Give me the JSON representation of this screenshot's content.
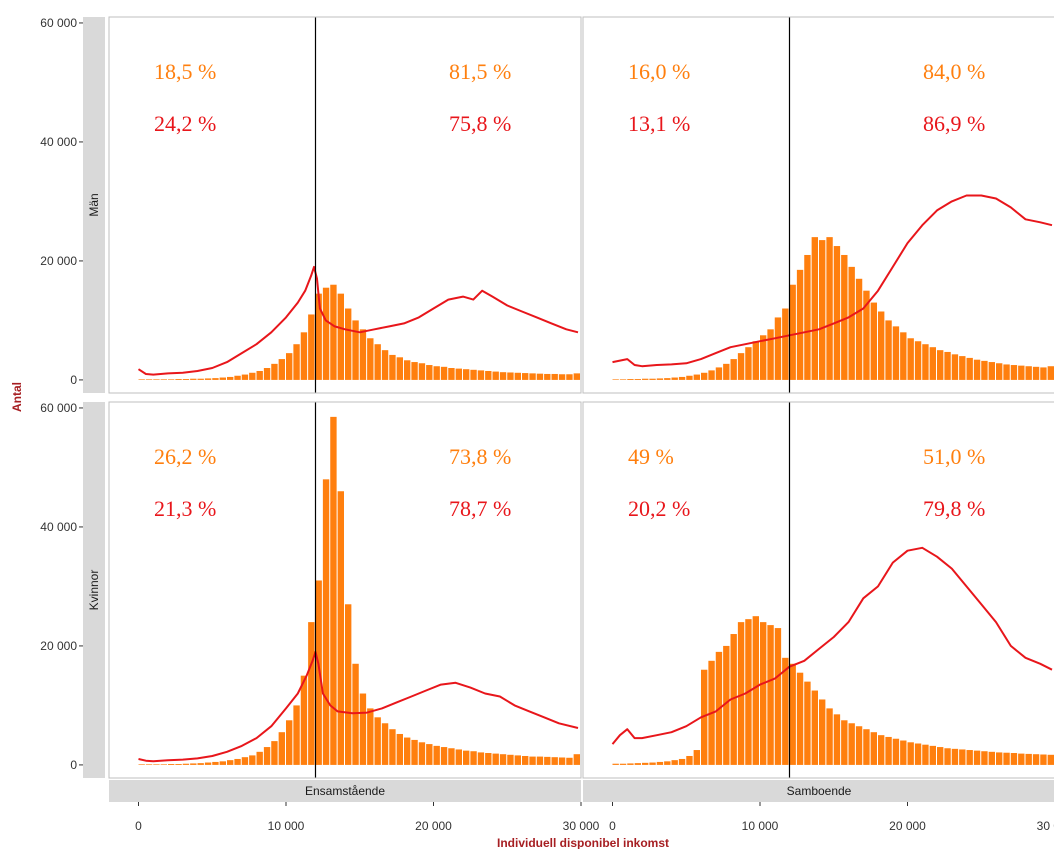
{
  "chart_data": {
    "type": "bar",
    "title": "",
    "xlabel": "Individuell disponibel inkomst",
    "ylabel": "Antal",
    "xlim": [
      -2000,
      30000
    ],
    "ylim": [
      -2200,
      61000
    ],
    "x_ticks": [
      0,
      10000,
      20000,
      30000
    ],
    "x_tick_labels": [
      "0",
      "10 000",
      "20 000",
      "30 000"
    ],
    "y_ticks": [
      0,
      20000,
      40000,
      60000
    ],
    "y_tick_labels": [
      "0",
      "20 000",
      "40 000",
      "60 000"
    ],
    "threshold": 12000,
    "bin_start": 0,
    "bin_width": 500,
    "column_facets": [
      "Ensamstående",
      "Samboende"
    ],
    "row_facets": [
      "Män",
      "Kvinnor"
    ],
    "grid": false,
    "colors": {
      "bars": "#ff7f0e",
      "line": "#e8161b",
      "pct_orange": "#ff7f0e",
      "pct_red": "#e8161b",
      "axis_title": "#a61e22",
      "strip": "#d9d9d9",
      "vline": "#000000"
    },
    "panels": [
      {
        "row": "Män",
        "col": "Ensamstående",
        "left_pct": {
          "top": "18,5 %",
          "bottom": "24,2 %"
        },
        "right_pct": {
          "top": "81,5 %",
          "bottom": "75,8 %"
        },
        "bars": [
          100,
          100,
          100,
          100,
          100,
          150,
          150,
          200,
          200,
          250,
          300,
          400,
          500,
          700,
          900,
          1200,
          1500,
          2000,
          2700,
          3500,
          4500,
          6000,
          8000,
          11000,
          14500,
          15500,
          16000,
          14500,
          12000,
          10000,
          8500,
          7000,
          6000,
          5000,
          4200,
          3800,
          3300,
          3000,
          2800,
          2500,
          2300,
          2200,
          2000,
          1900,
          1800,
          1700,
          1600,
          1500,
          1400,
          1300,
          1250,
          1200,
          1150,
          1100,
          1050,
          1000,
          1000,
          950,
          950,
          1100
        ],
        "line": [
          [
            0,
            1800
          ],
          [
            500,
            1000
          ],
          [
            1000,
            900
          ],
          [
            2000,
            1100
          ],
          [
            3000,
            1200
          ],
          [
            4000,
            1500
          ],
          [
            5000,
            2000
          ],
          [
            6000,
            3000
          ],
          [
            7000,
            4500
          ],
          [
            8000,
            6000
          ],
          [
            9000,
            8000
          ],
          [
            10000,
            10500
          ],
          [
            10800,
            13000
          ],
          [
            11300,
            15000
          ],
          [
            11700,
            17500
          ],
          [
            11900,
            19000
          ],
          [
            12100,
            17000
          ],
          [
            12300,
            12000
          ],
          [
            12700,
            10000
          ],
          [
            13300,
            9000
          ],
          [
            14000,
            8500
          ],
          [
            15000,
            8000
          ],
          [
            16000,
            8500
          ],
          [
            17000,
            9000
          ],
          [
            18000,
            9500
          ],
          [
            19000,
            10500
          ],
          [
            20000,
            12000
          ],
          [
            21000,
            13500
          ],
          [
            22000,
            14000
          ],
          [
            22700,
            13500
          ],
          [
            23300,
            15000
          ],
          [
            24000,
            14000
          ],
          [
            25000,
            12500
          ],
          [
            26000,
            11500
          ],
          [
            27000,
            10500
          ],
          [
            28000,
            9500
          ],
          [
            29000,
            8500
          ],
          [
            29800,
            8000
          ]
        ]
      },
      {
        "row": "Män",
        "col": "Samboende",
        "left_pct": {
          "top": "16,0 %",
          "bottom": "13,1 %"
        },
        "right_pct": {
          "top": "84,0 %",
          "bottom": "86,9 %"
        },
        "bars": [
          100,
          100,
          150,
          150,
          200,
          200,
          250,
          300,
          400,
          500,
          700,
          900,
          1200,
          1600,
          2100,
          2700,
          3500,
          4500,
          5500,
          6500,
          7500,
          8500,
          10500,
          12000,
          16000,
          18500,
          21000,
          24000,
          23500,
          24000,
          22500,
          21000,
          19000,
          17000,
          15000,
          13000,
          11500,
          10000,
          9000,
          8000,
          7000,
          6500,
          6000,
          5500,
          5000,
          4700,
          4300,
          4000,
          3700,
          3400,
          3200,
          3000,
          2800,
          2600,
          2500,
          2400,
          2300,
          2200,
          2100,
          2300
        ],
        "line": [
          [
            0,
            3000
          ],
          [
            1000,
            3500
          ],
          [
            1500,
            2500
          ],
          [
            2000,
            2300
          ],
          [
            3000,
            2500
          ],
          [
            4000,
            2600
          ],
          [
            5000,
            2800
          ],
          [
            6000,
            3500
          ],
          [
            7000,
            4500
          ],
          [
            8000,
            5500
          ],
          [
            9000,
            6000
          ],
          [
            10000,
            6500
          ],
          [
            11000,
            7000
          ],
          [
            12000,
            7500
          ],
          [
            13000,
            8000
          ],
          [
            14000,
            8500
          ],
          [
            15000,
            9500
          ],
          [
            16000,
            10500
          ],
          [
            17000,
            12000
          ],
          [
            18000,
            15000
          ],
          [
            19000,
            19000
          ],
          [
            20000,
            23000
          ],
          [
            21000,
            26000
          ],
          [
            22000,
            28500
          ],
          [
            23000,
            30000
          ],
          [
            24000,
            31000
          ],
          [
            25000,
            31000
          ],
          [
            26000,
            30500
          ],
          [
            27000,
            29000
          ],
          [
            28000,
            27000
          ],
          [
            29000,
            26500
          ],
          [
            29800,
            26000
          ]
        ]
      },
      {
        "row": "Kvinnor",
        "col": "Ensamstående",
        "left_pct": {
          "top": "26,2 %",
          "bottom": "21,3 %"
        },
        "right_pct": {
          "top": "73,8 %",
          "bottom": "78,7 %"
        },
        "bars": [
          100,
          100,
          100,
          100,
          150,
          150,
          200,
          250,
          300,
          400,
          500,
          600,
          800,
          1000,
          1300,
          1600,
          2200,
          3000,
          4000,
          5500,
          7500,
          10000,
          15000,
          24000,
          31000,
          48000,
          58500,
          46000,
          27000,
          17000,
          12000,
          9500,
          8000,
          7000,
          6000,
          5200,
          4600,
          4200,
          3800,
          3500,
          3200,
          3000,
          2800,
          2600,
          2400,
          2300,
          2100,
          2000,
          1900,
          1800,
          1700,
          1600,
          1500,
          1400,
          1400,
          1350,
          1300,
          1250,
          1200,
          1800
        ],
        "line": [
          [
            0,
            1000
          ],
          [
            500,
            700
          ],
          [
            1000,
            600
          ],
          [
            2000,
            800
          ],
          [
            3000,
            900
          ],
          [
            4000,
            1100
          ],
          [
            5000,
            1500
          ],
          [
            6000,
            2200
          ],
          [
            7000,
            3200
          ],
          [
            8000,
            4500
          ],
          [
            9000,
            6500
          ],
          [
            10000,
            9500
          ],
          [
            10800,
            12000
          ],
          [
            11400,
            15000
          ],
          [
            11800,
            17500
          ],
          [
            12000,
            19000
          ],
          [
            12200,
            17000
          ],
          [
            12500,
            12000
          ],
          [
            13000,
            10000
          ],
          [
            13500,
            9000
          ],
          [
            14500,
            8700
          ],
          [
            15500,
            8800
          ],
          [
            16500,
            9500
          ],
          [
            17500,
            10500
          ],
          [
            18500,
            11500
          ],
          [
            19500,
            12500
          ],
          [
            20500,
            13500
          ],
          [
            21500,
            13800
          ],
          [
            22500,
            13000
          ],
          [
            23500,
            12000
          ],
          [
            24500,
            11500
          ],
          [
            25500,
            10000
          ],
          [
            26500,
            9000
          ],
          [
            27500,
            8000
          ],
          [
            28500,
            7000
          ],
          [
            29800,
            6200
          ]
        ]
      },
      {
        "row": "Kvinnor",
        "col": "Samboende",
        "left_pct": {
          "top": "49 %",
          "bottom": "20,2 %"
        },
        "right_pct": {
          "top": "51,0 %",
          "bottom": "79,8 %"
        },
        "bars": [
          200,
          200,
          250,
          300,
          350,
          400,
          500,
          600,
          800,
          1000,
          1500,
          2500,
          16000,
          17500,
          19000,
          20000,
          22000,
          24000,
          24500,
          25000,
          24000,
          23500,
          23000,
          18000,
          17000,
          15500,
          14000,
          12500,
          11000,
          9500,
          8500,
          7500,
          7000,
          6500,
          6000,
          5500,
          5000,
          4700,
          4400,
          4100,
          3800,
          3600,
          3400,
          3200,
          3000,
          2800,
          2700,
          2600,
          2500,
          2400,
          2300,
          2200,
          2100,
          2050,
          2000,
          1900,
          1850,
          1800,
          1750,
          1700
        ],
        "line": [
          [
            0,
            3500
          ],
          [
            500,
            5000
          ],
          [
            1000,
            6000
          ],
          [
            1500,
            4500
          ],
          [
            2000,
            4500
          ],
          [
            3000,
            5000
          ],
          [
            4000,
            5500
          ],
          [
            5000,
            6500
          ],
          [
            6000,
            8000
          ],
          [
            7000,
            9000
          ],
          [
            8000,
            11000
          ],
          [
            9000,
            12000
          ],
          [
            10000,
            13500
          ],
          [
            11000,
            14500
          ],
          [
            12000,
            16500
          ],
          [
            13000,
            17500
          ],
          [
            14000,
            19500
          ],
          [
            15000,
            21500
          ],
          [
            16000,
            24000
          ],
          [
            17000,
            28000
          ],
          [
            18000,
            30000
          ],
          [
            19000,
            34000
          ],
          [
            20000,
            36000
          ],
          [
            21000,
            36500
          ],
          [
            22000,
            35000
          ],
          [
            23000,
            33000
          ],
          [
            24000,
            30000
          ],
          [
            25000,
            27000
          ],
          [
            26000,
            24000
          ],
          [
            27000,
            20000
          ],
          [
            28000,
            18000
          ],
          [
            29000,
            17000
          ],
          [
            29800,
            16000
          ]
        ]
      }
    ]
  }
}
